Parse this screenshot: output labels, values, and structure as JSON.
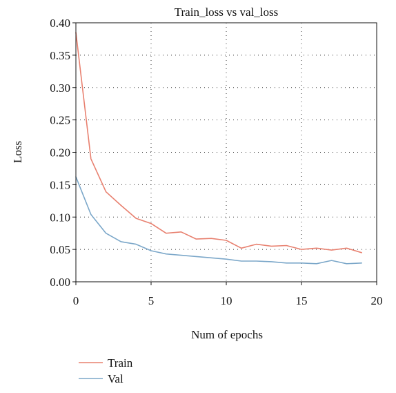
{
  "chart_data": {
    "type": "line",
    "title": "Train_loss vs val_loss",
    "xlabel": "Num of epochs",
    "ylabel": "Loss",
    "xlim": [
      0,
      20
    ],
    "ylim": [
      0,
      0.4
    ],
    "xticks": [
      0,
      5,
      10,
      15,
      20
    ],
    "yticks": [
      0.0,
      0.05,
      0.1,
      0.15,
      0.2,
      0.25,
      0.3,
      0.35,
      0.4
    ],
    "xtick_labels": [
      "0",
      "5",
      "10",
      "15",
      "20"
    ],
    "ytick_labels": [
      "0.00",
      "0.05",
      "0.10",
      "0.15",
      "0.20",
      "0.25",
      "0.30",
      "0.35",
      "0.40"
    ],
    "grid": true,
    "legend_position": "bottom-left",
    "x": [
      0,
      1,
      2,
      3,
      4,
      5,
      6,
      7,
      8,
      9,
      10,
      11,
      12,
      13,
      14,
      15,
      16,
      17,
      18,
      19
    ],
    "series": [
      {
        "name": "Train",
        "color": "#e8806f",
        "values": [
          0.385,
          0.19,
          0.139,
          0.118,
          0.098,
          0.09,
          0.075,
          0.077,
          0.066,
          0.067,
          0.064,
          0.052,
          0.058,
          0.055,
          0.056,
          0.05,
          0.052,
          0.049,
          0.052,
          0.045
        ]
      },
      {
        "name": "Val",
        "color": "#7ba7c9",
        "values": [
          0.162,
          0.104,
          0.075,
          0.062,
          0.058,
          0.048,
          0.043,
          0.041,
          0.039,
          0.037,
          0.035,
          0.032,
          0.032,
          0.031,
          0.029,
          0.029,
          0.028,
          0.033,
          0.028,
          0.029
        ]
      }
    ]
  }
}
